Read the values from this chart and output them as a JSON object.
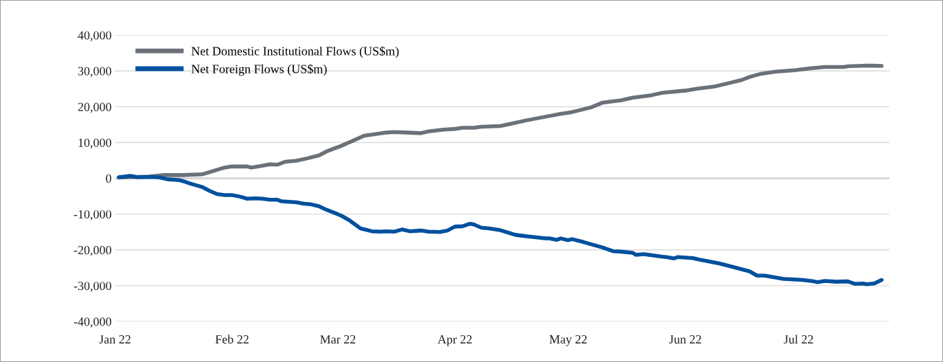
{
  "chart_data": {
    "type": "line",
    "xlim": [
      "2022-01-01",
      "2022-07-25"
    ],
    "xticks": [
      {
        "value": "2022-01-01",
        "label": "Jan 22"
      },
      {
        "value": "2022-02-01",
        "label": "Feb 22"
      },
      {
        "value": "2022-03-01",
        "label": "Mar 22"
      },
      {
        "value": "2022-04-01",
        "label": "Apr 22"
      },
      {
        "value": "2022-05-01",
        "label": "May 22"
      },
      {
        "value": "2022-06-01",
        "label": "Jun 22"
      },
      {
        "value": "2022-07-01",
        "label": "Jul 22"
      }
    ],
    "ylim": [
      -40000,
      40000
    ],
    "yticks": [
      {
        "value": 40000,
        "label": "40,000"
      },
      {
        "value": 30000,
        "label": "30,000"
      },
      {
        "value": 20000,
        "label": "20,000"
      },
      {
        "value": 10000,
        "label": "10,000"
      },
      0,
      {
        "value": -10000,
        "label": "-10,000"
      },
      {
        "value": -20000,
        "label": "-20,000"
      },
      {
        "value": -30000,
        "label": "-30,000"
      },
      {
        "value": -40000,
        "label": "-40,000"
      }
    ],
    "grid": "y",
    "legend": "top left",
    "marker": "none",
    "line_style": "solid",
    "series": [
      {
        "name": "Net Domestic Institutional Flows (US$m)",
        "color": "#6b7178",
        "x": [
          "2022-01-02",
          "2022-01-10",
          "2022-01-14",
          "2022-01-19",
          "2022-01-24",
          "2022-01-26",
          "2022-01-30",
          "2022-02-01",
          "2022-02-05",
          "2022-02-06",
          "2022-02-09",
          "2022-02-11",
          "2022-02-13",
          "2022-02-15",
          "2022-02-18",
          "2022-02-21",
          "2022-02-24",
          "2022-02-26",
          "2022-03-02",
          "2022-03-05",
          "2022-03-08",
          "2022-03-10",
          "2022-03-14",
          "2022-03-16",
          "2022-03-19",
          "2022-03-23",
          "2022-03-25",
          "2022-03-29",
          "2022-04-01",
          "2022-04-03",
          "2022-04-06",
          "2022-04-08",
          "2022-04-13",
          "2022-04-17",
          "2022-04-20",
          "2022-04-26",
          "2022-04-29",
          "2022-05-02",
          "2022-05-07",
          "2022-05-10",
          "2022-05-15",
          "2022-05-18",
          "2022-05-23",
          "2022-05-26",
          "2022-06-01",
          "2022-06-04",
          "2022-06-09",
          "2022-06-13",
          "2022-06-16",
          "2022-06-18",
          "2022-06-21",
          "2022-06-25",
          "2022-06-30",
          "2022-07-04",
          "2022-07-08",
          "2022-07-13",
          "2022-07-14",
          "2022-07-19",
          "2022-07-23"
        ],
        "values": [
          200,
          500,
          900,
          900,
          1100,
          1700,
          3000,
          3300,
          3300,
          3000,
          3500,
          3900,
          3800,
          4600,
          4900,
          5600,
          6400,
          7500,
          9100,
          10500,
          11900,
          12200,
          12800,
          12900,
          12800,
          12600,
          13100,
          13600,
          13800,
          14100,
          14100,
          14400,
          14600,
          15500,
          16200,
          17400,
          18000,
          18500,
          19800,
          21100,
          21800,
          22500,
          23200,
          23900,
          24500,
          25000,
          25700,
          26700,
          27500,
          28300,
          29200,
          29800,
          30200,
          30700,
          31100,
          31100,
          31300,
          31500,
          31400
        ]
      },
      {
        "name": "Net Foreign Flows (US$m)",
        "color": "#00509e",
        "x": [
          "2022-01-02",
          "2022-01-05",
          "2022-01-07",
          "2022-01-11",
          "2022-01-13",
          "2022-01-15",
          "2022-01-18",
          "2022-01-19",
          "2022-01-21",
          "2022-01-24",
          "2022-01-26",
          "2022-01-28",
          "2022-01-30",
          "2022-02-01",
          "2022-02-03",
          "2022-02-05",
          "2022-02-07",
          "2022-02-09",
          "2022-02-11",
          "2022-02-13",
          "2022-02-14",
          "2022-02-18",
          "2022-02-20",
          "2022-02-22",
          "2022-02-24",
          "2022-02-26",
          "2022-02-28",
          "2022-03-02",
          "2022-03-04",
          "2022-03-07",
          "2022-03-10",
          "2022-03-12",
          "2022-03-14",
          "2022-03-16",
          "2022-03-18",
          "2022-03-20",
          "2022-03-23",
          "2022-03-25",
          "2022-03-28",
          "2022-03-30",
          "2022-04-01",
          "2022-04-03",
          "2022-04-05",
          "2022-04-06",
          "2022-04-08",
          "2022-04-10",
          "2022-04-13",
          "2022-04-17",
          "2022-04-20",
          "2022-04-25",
          "2022-04-26",
          "2022-04-28",
          "2022-04-29",
          "2022-05-01",
          "2022-05-02",
          "2022-05-05",
          "2022-05-10",
          "2022-05-13",
          "2022-05-15",
          "2022-05-18",
          "2022-05-19",
          "2022-05-21",
          "2022-05-26",
          "2022-05-27",
          "2022-05-29",
          "2022-05-30",
          "2022-06-03",
          "2022-06-05",
          "2022-06-10",
          "2022-06-13",
          "2022-06-18",
          "2022-06-20",
          "2022-06-22",
          "2022-06-27",
          "2022-07-02",
          "2022-07-05",
          "2022-07-06",
          "2022-07-08",
          "2022-07-11",
          "2022-07-14",
          "2022-07-16",
          "2022-07-18",
          "2022-07-19",
          "2022-07-21",
          "2022-07-23"
        ],
        "values": [
          300,
          700,
          300,
          400,
          200,
          -300,
          -500,
          -800,
          -1500,
          -2400,
          -3500,
          -4400,
          -4700,
          -4700,
          -5100,
          -5700,
          -5600,
          -5700,
          -6000,
          -6000,
          -6400,
          -6700,
          -7100,
          -7300,
          -7800,
          -8800,
          -9600,
          -10500,
          -11700,
          -14000,
          -14800,
          -14900,
          -14800,
          -14900,
          -14300,
          -14800,
          -14600,
          -14900,
          -15000,
          -14600,
          -13500,
          -13400,
          -12700,
          -12900,
          -13800,
          -14000,
          -14500,
          -15800,
          -16200,
          -16800,
          -16800,
          -17200,
          -16800,
          -17300,
          -17000,
          -17800,
          -19300,
          -20400,
          -20500,
          -20800,
          -21400,
          -21200,
          -21900,
          -22000,
          -22400,
          -22000,
          -22300,
          -22800,
          -23800,
          -24600,
          -26000,
          -27200,
          -27200,
          -28100,
          -28400,
          -28800,
          -29000,
          -28700,
          -28900,
          -28800,
          -29500,
          -29400,
          -29600,
          -29400,
          -28400
        ]
      }
    ]
  }
}
